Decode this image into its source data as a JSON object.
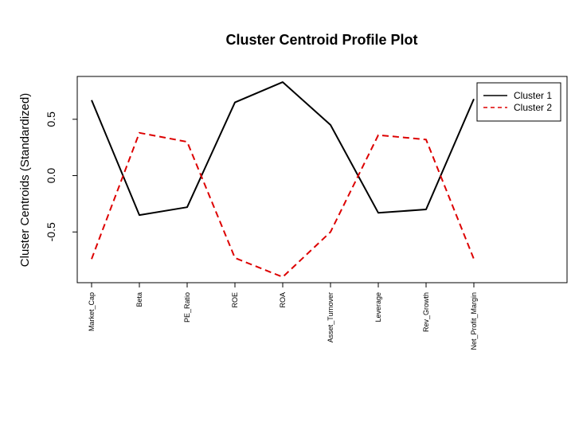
{
  "chart_data": {
    "type": "line",
    "title": "Cluster Centroid Profile Plot",
    "xlabel": "",
    "ylabel": "Cluster Centroids (Standardized)",
    "categories": [
      "Market_Cap",
      "Beta",
      "PE_Ratio",
      "ROE",
      "ROA",
      "Asset_Turnover",
      "Leverage",
      "Rev_Growth",
      "Net_Profit_Margin"
    ],
    "yticks": [
      "-0.5",
      "0.0",
      "0.5"
    ],
    "ylim": [
      -0.95,
      0.88
    ],
    "xlim": [
      0.7,
      10.95
    ],
    "grid": false,
    "legend_position": "top-right",
    "series": [
      {
        "name": "Cluster 1",
        "color": "#000000",
        "dash": "solid",
        "values": [
          0.67,
          -0.35,
          -0.28,
          0.65,
          0.83,
          0.45,
          -0.33,
          -0.3,
          0.68
        ]
      },
      {
        "name": "Cluster 2",
        "color": "#dd0000",
        "dash": "dashed",
        "values": [
          -0.74,
          0.38,
          0.3,
          -0.73,
          -0.9,
          -0.5,
          0.36,
          0.32,
          -0.74
        ]
      }
    ]
  }
}
